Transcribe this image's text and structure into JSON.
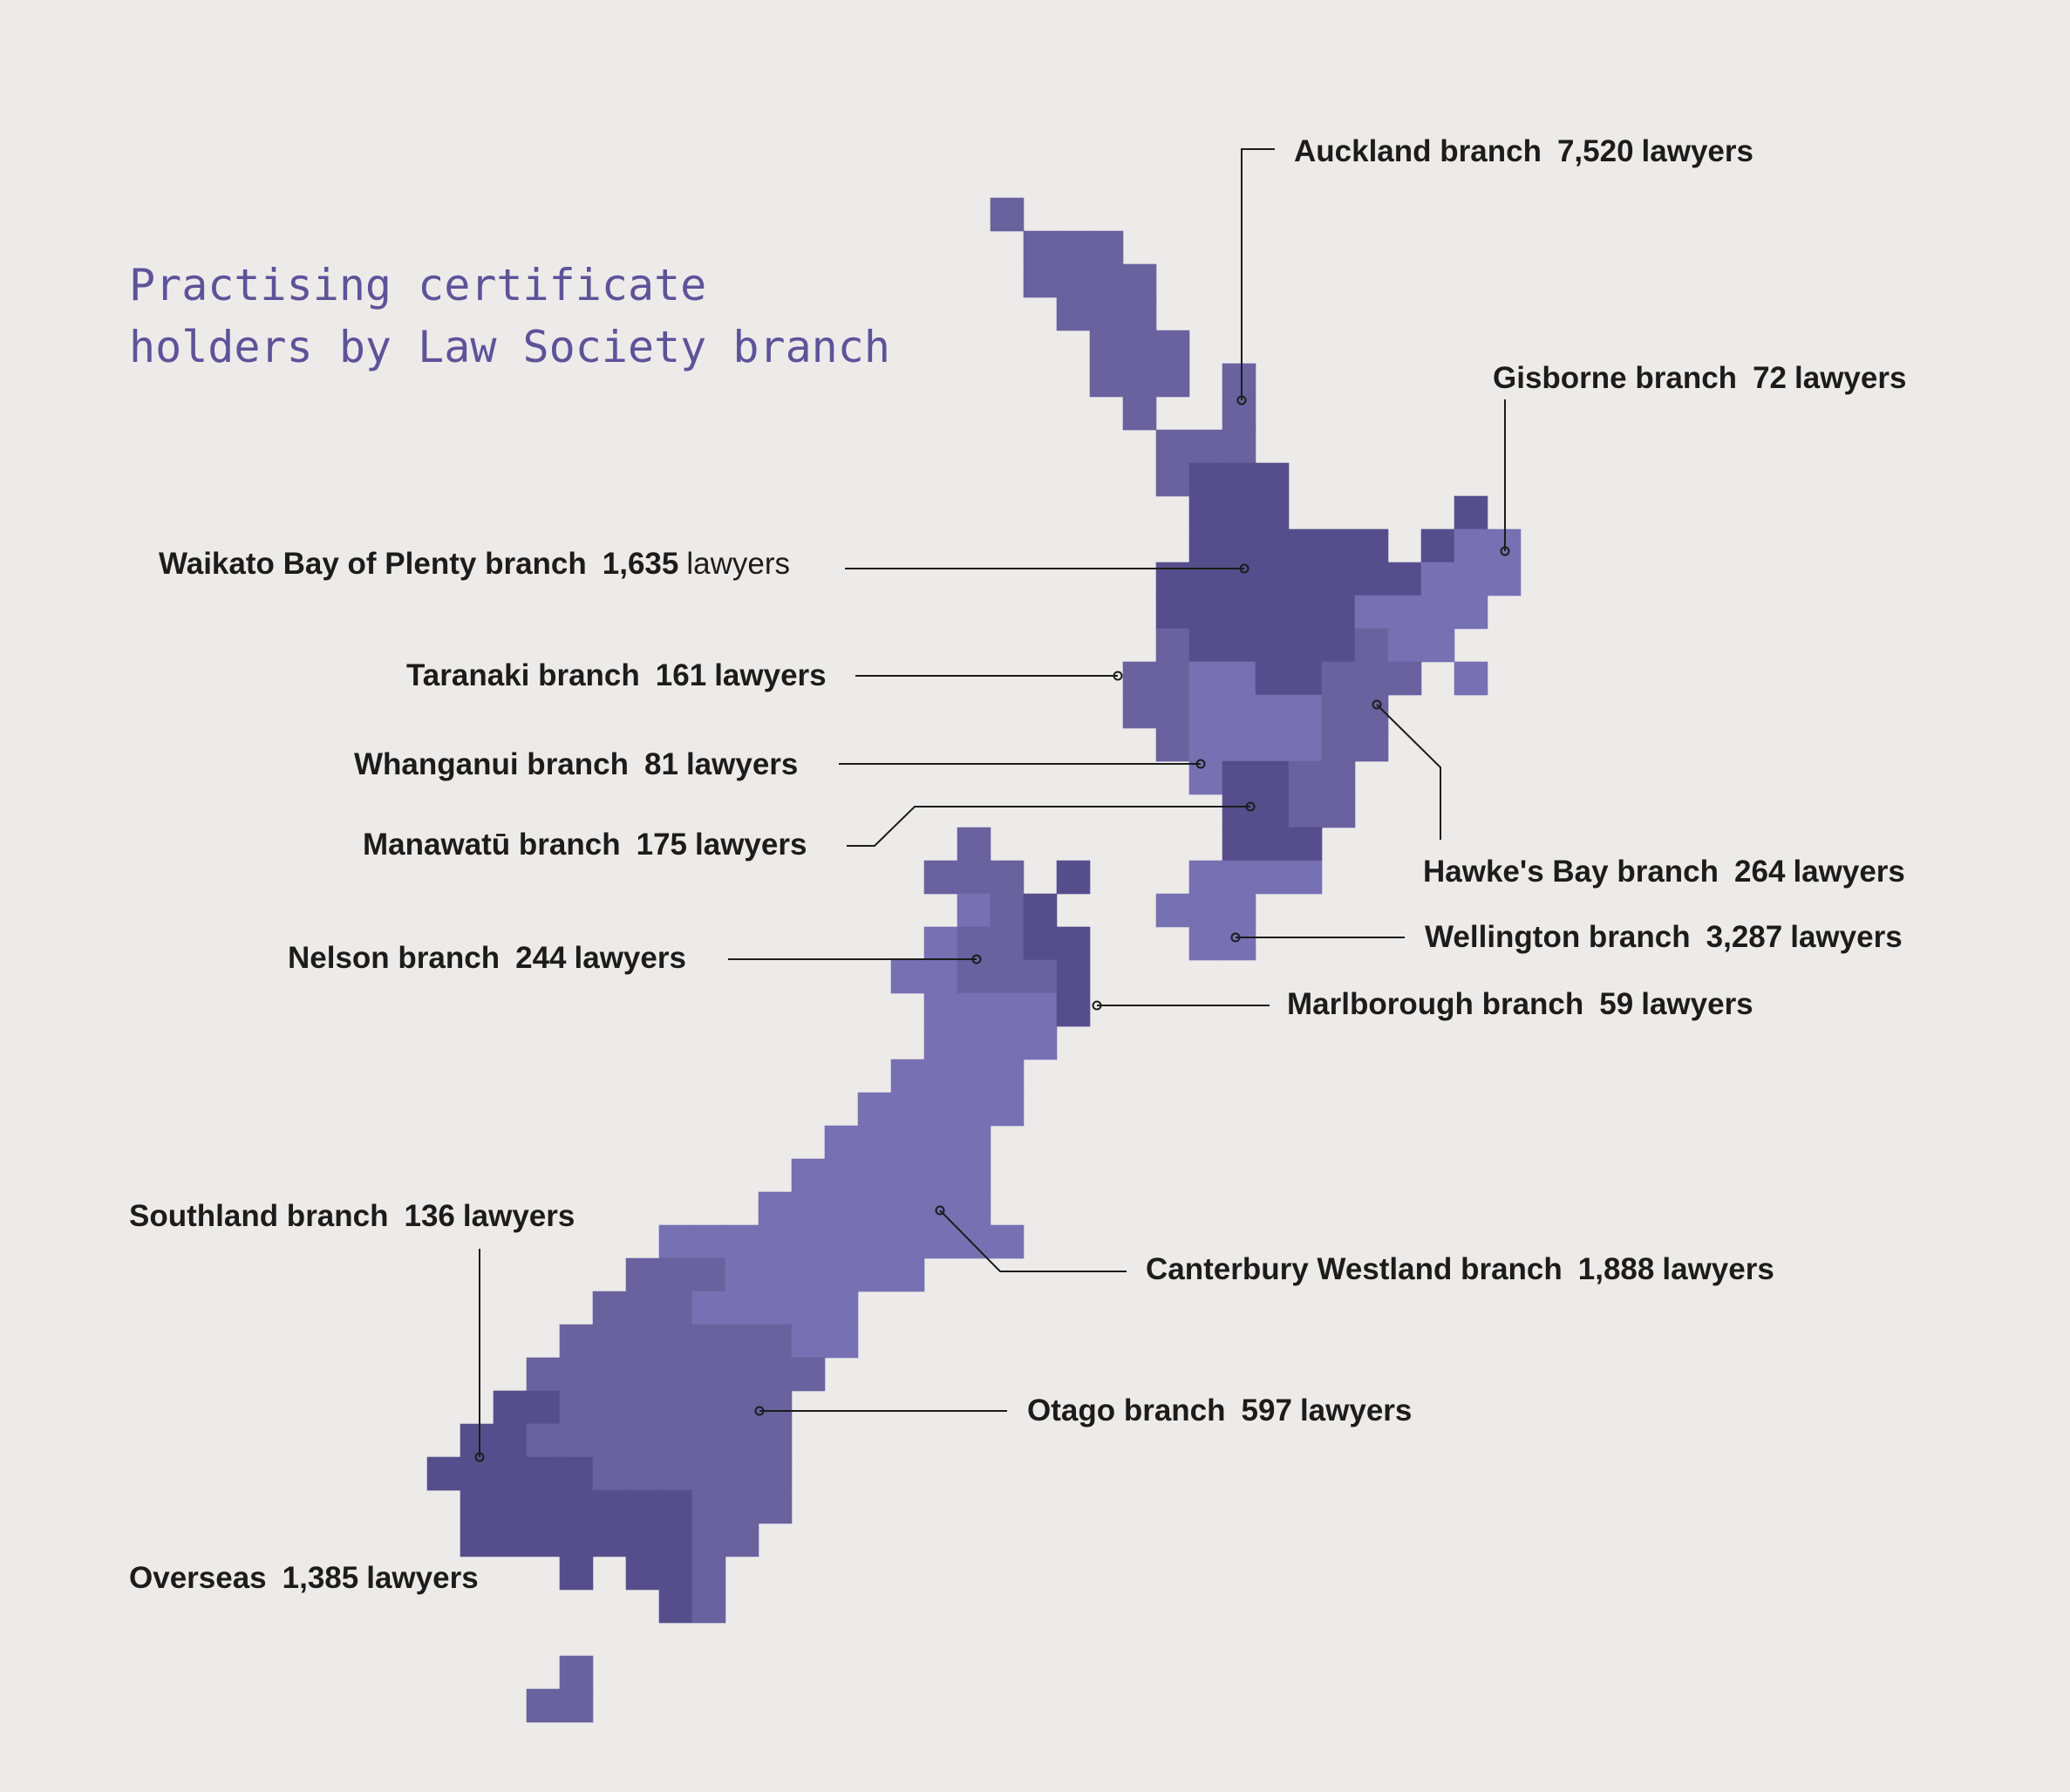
{
  "title": {
    "line1": "Practising certificate",
    "line2": "holders by Law Society branch"
  },
  "colors": {
    "background": "#ecebea",
    "title": "#5e5399",
    "text": "#1c1c1c",
    "leader": "#1c1c1c",
    "shade_light": "#7770b2",
    "shade_mid": "#6a619f",
    "shade_dark": "#564e8c"
  },
  "unit": "lawyers",
  "branches": [
    {
      "key": "auckland",
      "name": "Auckland branch",
      "count": "7,520",
      "value": 7520
    },
    {
      "key": "gisborne",
      "name": "Gisborne branch",
      "count": "72",
      "value": 72
    },
    {
      "key": "waikato",
      "name": "Waikato Bay of Plenty branch",
      "count": "1,635",
      "value": 1635
    },
    {
      "key": "taranaki",
      "name": "Taranaki branch",
      "count": "161",
      "value": 161
    },
    {
      "key": "whanganui",
      "name": "Whanganui branch",
      "count": "81",
      "value": 81
    },
    {
      "key": "manawatu",
      "name": "Manawatū branch",
      "count": "175",
      "value": 175
    },
    {
      "key": "hawkesbay",
      "name": "Hawke's Bay branch",
      "count": "264",
      "value": 264
    },
    {
      "key": "wellington",
      "name": "Wellington branch",
      "count": "3,287",
      "value": 3287
    },
    {
      "key": "nelson",
      "name": "Nelson branch",
      "count": "244",
      "value": 244
    },
    {
      "key": "marlborough",
      "name": "Marlborough branch",
      "count": "59",
      "value": 59
    },
    {
      "key": "southland",
      "name": "Southland branch",
      "count": "136",
      "value": 136
    },
    {
      "key": "canterbury",
      "name": "Canterbury Westland branch",
      "count": "1,888",
      "value": 1888
    },
    {
      "key": "otago",
      "name": "Otago branch",
      "count": "597",
      "value": 597
    },
    {
      "key": "overseas",
      "name": "Overseas",
      "count": "1,385",
      "value": 1385
    }
  ]
}
